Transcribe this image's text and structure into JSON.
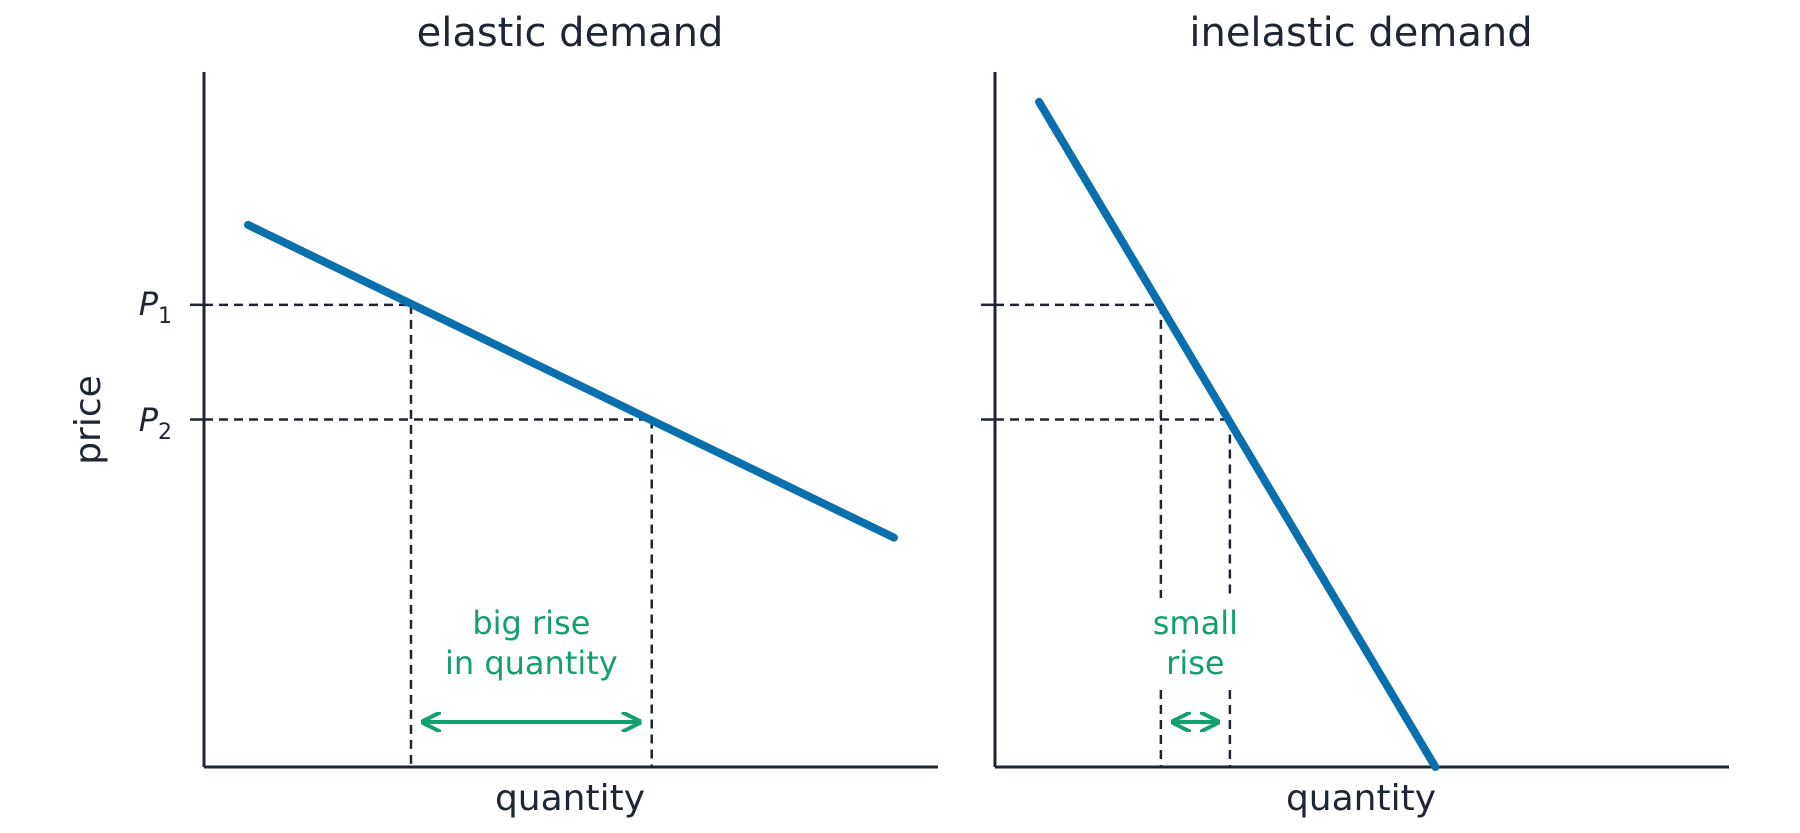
{
  "colors": {
    "demand_line": "#0a6fad",
    "annotation": "#12a070",
    "axis": "#1e2533",
    "guide": "#1e2533"
  },
  "shared": {
    "ylabel": "price",
    "price_labels": [
      {
        "symbol": "P",
        "subscript": "1"
      },
      {
        "symbol": "P",
        "subscript": "2"
      }
    ]
  },
  "chart_data": [
    {
      "type": "line",
      "title": "elastic demand",
      "xlabel": "quantity",
      "ylabel": "price",
      "xlim": [
        0,
        1
      ],
      "ylim": [
        0,
        1
      ],
      "series": [
        {
          "x": [
            0.06,
            0.94
          ],
          "y": [
            0.78,
            0.33
          ]
        }
      ],
      "price_levels": [
        0.665,
        0.5
      ],
      "quantity_levels": [
        0.282,
        0.61
      ],
      "annotation": {
        "lines": [
          "big rise",
          "in quantity"
        ]
      }
    },
    {
      "type": "line",
      "title": "inelastic demand",
      "xlabel": "quantity",
      "ylabel": "",
      "xlim": [
        0,
        1
      ],
      "ylim": [
        0,
        1
      ],
      "series": [
        {
          "x": [
            0.06,
            0.6
          ],
          "y": [
            0.957,
            0.0
          ]
        }
      ],
      "price_levels": [
        0.665,
        0.5
      ],
      "quantity_levels": [
        0.226,
        0.32
      ],
      "annotation": {
        "lines": [
          "small",
          "rise"
        ]
      }
    }
  ]
}
